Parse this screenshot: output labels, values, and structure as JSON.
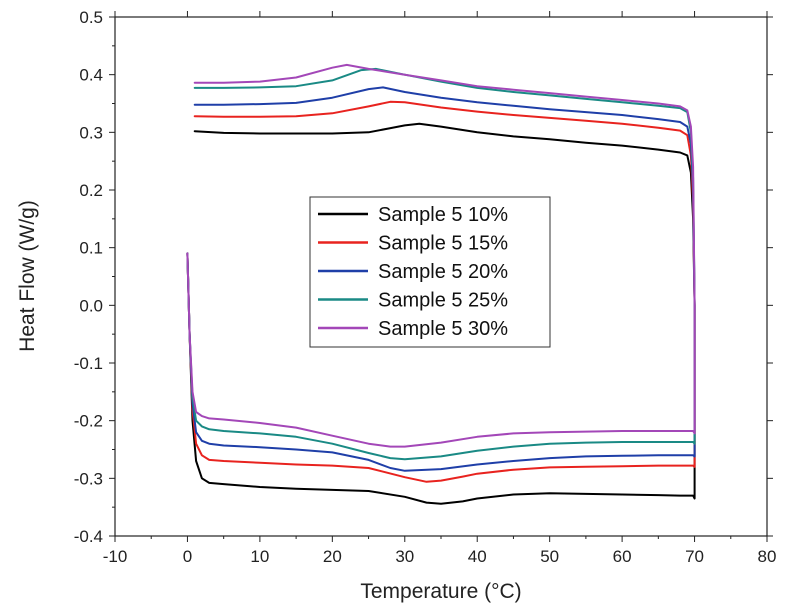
{
  "chart_data": {
    "type": "line",
    "title": "",
    "xlabel": "Temperature (°C)",
    "ylabel": "Heat Flow (W/g)",
    "xlim": [
      -10,
      80
    ],
    "ylim": [
      -0.4,
      0.5
    ],
    "xticks": [
      -10,
      0,
      10,
      20,
      30,
      40,
      50,
      60,
      70,
      80
    ],
    "yticks": [
      -0.4,
      -0.3,
      -0.2,
      -0.1,
      0.0,
      0.1,
      0.2,
      0.3,
      0.4,
      0.5
    ],
    "xtick_labels": [
      "-10",
      "0",
      "10",
      "20",
      "30",
      "40",
      "50",
      "60",
      "70",
      "80"
    ],
    "ytick_labels": [
      "-0.4",
      "-0.3",
      "-0.2",
      "-0.1",
      "0.0",
      "0.1",
      "0.2",
      "0.3",
      "0.4",
      "0.5"
    ],
    "grid": false,
    "legend_position": "center",
    "series": [
      {
        "name": "Sample 5 10%",
        "color": "#000000",
        "x": [
          0,
          0.3,
          0.7,
          1.2,
          2,
          3,
          5,
          10,
          15,
          20,
          25,
          30,
          33,
          35,
          38,
          40,
          45,
          50,
          55,
          60,
          65,
          68,
          69,
          69.5,
          69.8,
          70,
          70,
          69.8,
          69.5,
          69,
          68,
          65,
          60,
          55,
          50,
          45,
          40,
          35,
          32,
          30,
          25,
          20,
          15,
          10,
          5,
          1
        ],
        "y": [
          0.09,
          -0.05,
          -0.2,
          -0.27,
          -0.3,
          -0.308,
          -0.31,
          -0.315,
          -0.318,
          -0.32,
          -0.322,
          -0.332,
          -0.342,
          -0.344,
          -0.34,
          -0.335,
          -0.328,
          -0.326,
          -0.327,
          -0.328,
          -0.329,
          -0.33,
          -0.33,
          -0.33,
          -0.33,
          -0.335,
          0.0,
          0.15,
          0.23,
          0.26,
          0.265,
          0.27,
          0.277,
          0.282,
          0.288,
          0.293,
          0.3,
          0.31,
          0.315,
          0.312,
          0.3,
          0.298,
          0.298,
          0.298,
          0.299,
          0.302
        ]
      },
      {
        "name": "Sample 5 15%",
        "color": "#e8231f",
        "x": [
          0,
          0.3,
          0.7,
          1.2,
          2,
          3,
          5,
          10,
          15,
          20,
          25,
          30,
          33,
          35,
          38,
          40,
          45,
          50,
          55,
          60,
          65,
          69,
          69.8,
          70,
          70,
          69.8,
          69.5,
          69,
          68,
          65,
          60,
          55,
          50,
          45,
          40,
          35,
          30,
          28,
          25,
          20,
          15,
          10,
          5,
          1
        ],
        "y": [
          0.09,
          -0.05,
          -0.18,
          -0.24,
          -0.26,
          -0.268,
          -0.27,
          -0.273,
          -0.276,
          -0.278,
          -0.282,
          -0.298,
          -0.306,
          -0.304,
          -0.297,
          -0.292,
          -0.285,
          -0.281,
          -0.28,
          -0.279,
          -0.278,
          -0.278,
          -0.278,
          -0.28,
          0.0,
          0.18,
          0.26,
          0.295,
          0.303,
          0.308,
          0.315,
          0.32,
          0.325,
          0.33,
          0.336,
          0.343,
          0.352,
          0.353,
          0.345,
          0.333,
          0.328,
          0.327,
          0.327,
          0.328
        ]
      },
      {
        "name": "Sample 5 20%",
        "color": "#1f3fa8",
        "x": [
          0,
          0.3,
          0.7,
          1.2,
          2,
          3,
          5,
          10,
          15,
          20,
          25,
          28,
          30,
          35,
          40,
          45,
          50,
          55,
          60,
          65,
          69,
          69.8,
          70,
          70,
          69.8,
          69.5,
          69,
          68,
          65,
          60,
          55,
          50,
          45,
          40,
          35,
          30,
          27,
          25,
          20,
          15,
          10,
          5,
          1
        ],
        "y": [
          0.09,
          -0.05,
          -0.17,
          -0.22,
          -0.235,
          -0.24,
          -0.243,
          -0.246,
          -0.25,
          -0.255,
          -0.268,
          -0.282,
          -0.287,
          -0.284,
          -0.276,
          -0.27,
          -0.265,
          -0.262,
          -0.261,
          -0.26,
          -0.26,
          -0.26,
          -0.262,
          0.0,
          0.2,
          0.28,
          0.31,
          0.318,
          0.323,
          0.33,
          0.335,
          0.34,
          0.346,
          0.352,
          0.36,
          0.37,
          0.378,
          0.375,
          0.36,
          0.351,
          0.349,
          0.348,
          0.348
        ]
      },
      {
        "name": "Sample 5 25%",
        "color": "#1a8a85",
        "x": [
          0,
          0.3,
          0.7,
          1.2,
          2,
          3,
          5,
          10,
          15,
          20,
          25,
          28,
          30,
          35,
          40,
          45,
          50,
          55,
          60,
          65,
          69,
          69.8,
          70,
          70,
          69.8,
          69.5,
          69,
          68,
          65,
          60,
          55,
          50,
          45,
          40,
          35,
          30,
          26,
          24,
          20,
          15,
          10,
          5,
          1
        ],
        "y": [
          0.09,
          -0.05,
          -0.16,
          -0.2,
          -0.21,
          -0.215,
          -0.218,
          -0.222,
          -0.228,
          -0.24,
          -0.256,
          -0.265,
          -0.267,
          -0.262,
          -0.252,
          -0.245,
          -0.24,
          -0.238,
          -0.237,
          -0.237,
          -0.237,
          -0.237,
          -0.24,
          0.0,
          0.22,
          0.3,
          0.335,
          0.342,
          0.346,
          0.352,
          0.358,
          0.364,
          0.37,
          0.377,
          0.388,
          0.4,
          0.41,
          0.408,
          0.39,
          0.38,
          0.378,
          0.377,
          0.377
        ]
      },
      {
        "name": "Sample 5 30%",
        "color": "#a347b8",
        "x": [
          0,
          0.3,
          0.7,
          1.2,
          2,
          3,
          5,
          10,
          15,
          20,
          25,
          28,
          30,
          35,
          40,
          45,
          50,
          55,
          60,
          65,
          69,
          69.8,
          70,
          70,
          69.8,
          69.5,
          69,
          68,
          65,
          60,
          55,
          50,
          45,
          40,
          35,
          30,
          25,
          22,
          20,
          15,
          10,
          5,
          1
        ],
        "y": [
          0.09,
          -0.05,
          -0.15,
          -0.185,
          -0.192,
          -0.196,
          -0.198,
          -0.204,
          -0.212,
          -0.226,
          -0.24,
          -0.245,
          -0.245,
          -0.238,
          -0.228,
          -0.222,
          -0.22,
          -0.219,
          -0.218,
          -0.218,
          -0.218,
          -0.218,
          -0.222,
          0.0,
          0.24,
          0.31,
          0.338,
          0.345,
          0.35,
          0.356,
          0.362,
          0.368,
          0.374,
          0.38,
          0.39,
          0.4,
          0.41,
          0.417,
          0.412,
          0.395,
          0.388,
          0.386,
          0.386
        ]
      }
    ]
  }
}
